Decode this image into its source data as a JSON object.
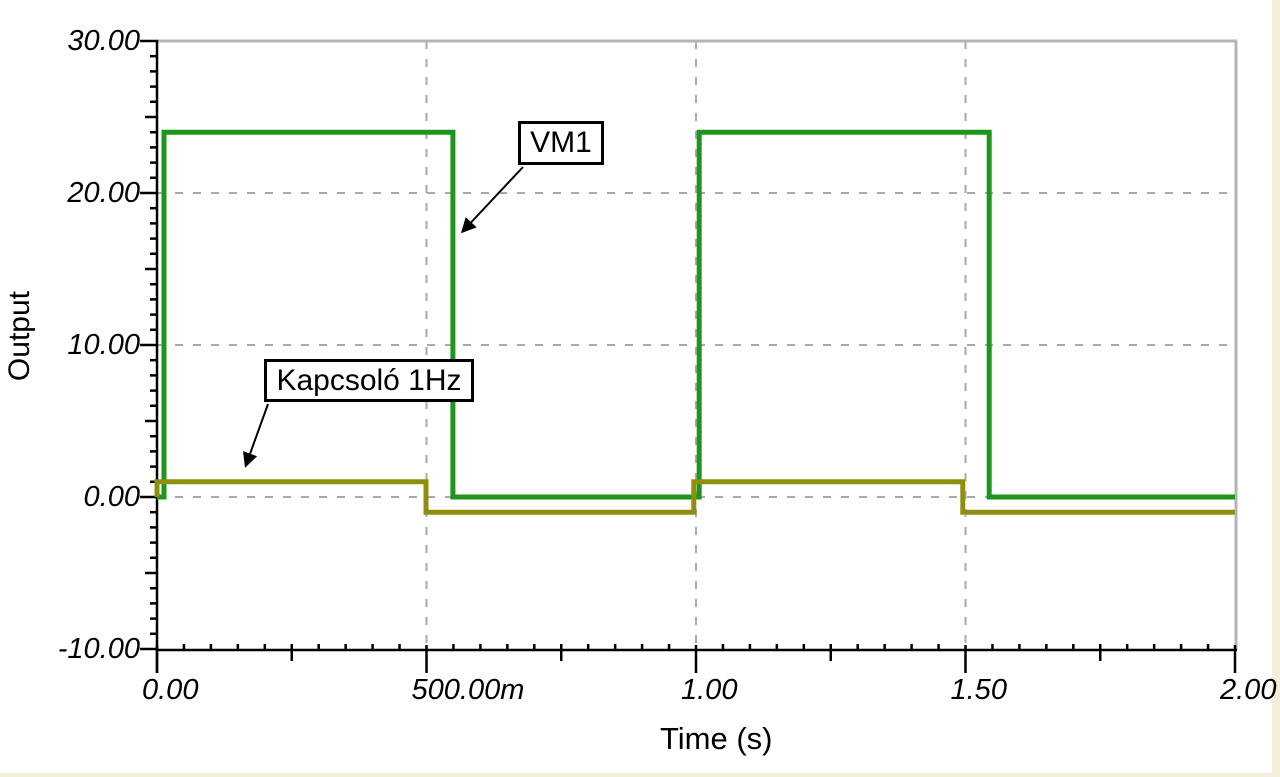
{
  "chart_data": {
    "type": "line",
    "title": "",
    "xlabel": "Time (s)",
    "ylabel": "Output",
    "xlim": [
      0,
      2
    ],
    "ylim": [
      -10,
      30
    ],
    "legend": "none",
    "grid": "dashed-major",
    "grid_x_values": [
      0.5,
      1.0,
      1.5
    ],
    "grid_y_values": [
      0,
      10,
      20
    ],
    "x_major_ticks": [
      {
        "v": 0.0,
        "label": "0.00"
      },
      {
        "v": 0.5,
        "label": "500.00m"
      },
      {
        "v": 1.0,
        "label": "1.00"
      },
      {
        "v": 1.5,
        "label": "1.50"
      },
      {
        "v": 2.0,
        "label": "2.00"
      }
    ],
    "y_major_ticks": [
      {
        "v": -10,
        "label": "-10.00"
      },
      {
        "v": 0,
        "label": "0.00"
      },
      {
        "v": 10,
        "label": "10.00"
      },
      {
        "v": 20,
        "label": "20.00"
      },
      {
        "v": 30,
        "label": "30.00"
      }
    ],
    "x_minor_step": 0.05,
    "x_mid_step": 0.25,
    "y_minor_step": 1,
    "y_mid_step": 5,
    "series": [
      {
        "name": "VM1",
        "color": "#1e961e",
        "points": [
          [
            0,
            0
          ],
          [
            0.013,
            0
          ],
          [
            0.013,
            24
          ],
          [
            0.549,
            24
          ],
          [
            0.549,
            0
          ],
          [
            1.006,
            0
          ],
          [
            1.006,
            24
          ],
          [
            1.544,
            24
          ],
          [
            1.544,
            0
          ],
          [
            2,
            0
          ]
        ]
      },
      {
        "name": "Kapcsoló 1Hz",
        "color": "#8f8f0e",
        "points": [
          [
            0,
            0
          ],
          [
            0,
            1
          ],
          [
            0.499,
            1
          ],
          [
            0.499,
            -1
          ],
          [
            0.996,
            -1
          ],
          [
            0.996,
            1
          ],
          [
            1.495,
            1
          ],
          [
            1.495,
            -1
          ],
          [
            2,
            -1
          ]
        ]
      }
    ],
    "annotations": [
      {
        "label": "VM1"
      },
      {
        "label": "Kapcsoló 1Hz"
      }
    ],
    "colors": {
      "axis": "#000000",
      "frame_border": "#b4b4b4",
      "gridline": "#a9a9a9",
      "plot_background": "#ffffff",
      "window_edge": "#f2eed9"
    }
  }
}
